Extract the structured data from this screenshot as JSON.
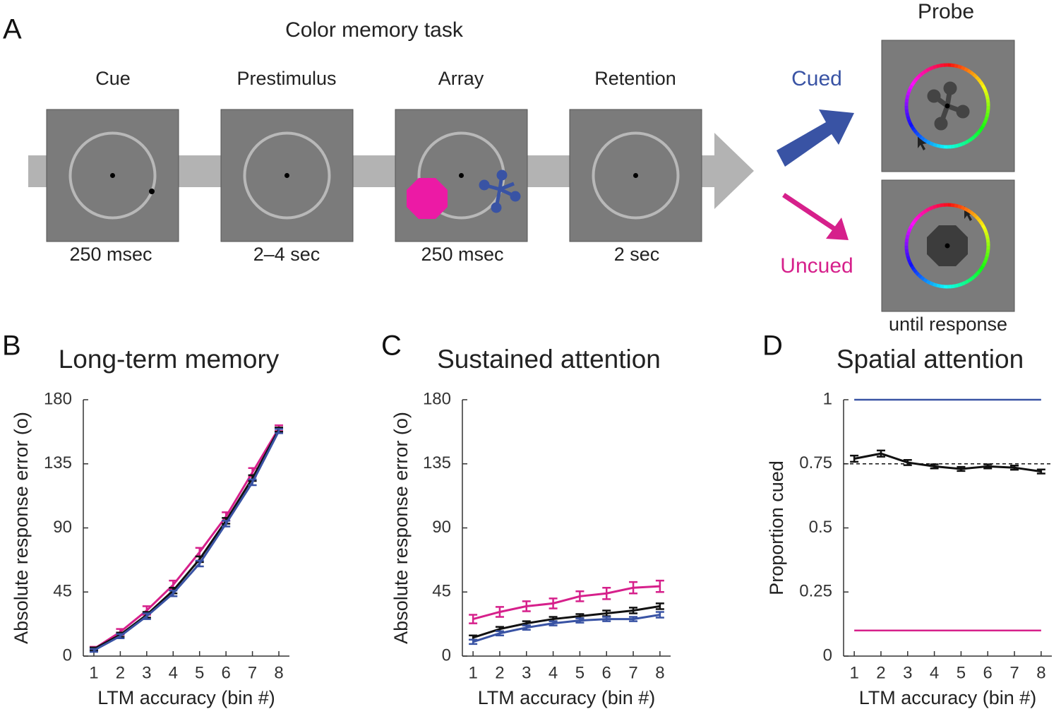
{
  "diagram": {
    "panel": "A",
    "title": "Color memory task",
    "stages": [
      {
        "label": "Cue",
        "duration": "250 msec"
      },
      {
        "label": "Prestimulus",
        "duration": "2–4 sec"
      },
      {
        "label": "Array",
        "duration": "250 msec"
      },
      {
        "label": "Retention",
        "duration": "2 sec"
      }
    ],
    "probe": {
      "label": "Probe",
      "duration": "until response"
    },
    "cued": "Cued",
    "uncued": "Uncued"
  },
  "chart_data": [
    {
      "type": "line",
      "panel": "B",
      "title": "Long-term memory",
      "xlabel": "LTM accuracy (bin #)",
      "ylabel": "Absolute response error (o)",
      "x": [
        1,
        2,
        3,
        4,
        5,
        6,
        7,
        8
      ],
      "xlim": [
        0.6,
        8.4
      ],
      "xticks": [
        1,
        2,
        3,
        4,
        5,
        6,
        7,
        8
      ],
      "ylim": [
        0,
        180
      ],
      "yticks": [
        0,
        45,
        90,
        135,
        180
      ],
      "series": [
        {
          "color": "#d6208b",
          "values": [
            5,
            17,
            32,
            50,
            73,
            98,
            129,
            160
          ],
          "errors": [
            1.5,
            2,
            3,
            3,
            3,
            3,
            3,
            2
          ]
        },
        {
          "color": "#111111",
          "values": [
            5,
            15,
            29,
            46,
            68,
            95,
            125,
            159
          ],
          "errors": [
            1,
            1.5,
            2,
            2,
            2,
            2,
            2,
            1.5
          ]
        },
        {
          "color": "#3953a4",
          "values": [
            4,
            14,
            28,
            44,
            65,
            93,
            122,
            158
          ],
          "errors": [
            1,
            1.5,
            2,
            2,
            2,
            2,
            2,
            1.5
          ]
        }
      ]
    },
    {
      "type": "line",
      "panel": "C",
      "title": "Sustained attention",
      "xlabel": "LTM accuracy (bin #)",
      "ylabel": "Absolute response error (o)",
      "x": [
        1,
        2,
        3,
        4,
        5,
        6,
        7,
        8
      ],
      "xlim": [
        0.6,
        8.4
      ],
      "xticks": [
        1,
        2,
        3,
        4,
        5,
        6,
        7,
        8
      ],
      "ylim": [
        0,
        180
      ],
      "yticks": [
        0,
        45,
        90,
        135,
        180
      ],
      "series": [
        {
          "color": "#d6208b",
          "values": [
            26,
            31,
            35,
            37,
            42,
            44,
            48,
            49
          ],
          "errors": [
            3,
            3.5,
            3.5,
            3.5,
            3.5,
            4,
            4,
            4
          ]
        },
        {
          "color": "#111111",
          "values": [
            13,
            19,
            23,
            26,
            28,
            30,
            32,
            35
          ],
          "errors": [
            1.5,
            1.5,
            1.5,
            1.5,
            1.5,
            2,
            2,
            2
          ]
        },
        {
          "color": "#3953a4",
          "values": [
            10,
            16,
            20,
            23,
            25,
            26,
            26,
            29
          ],
          "errors": [
            1.5,
            1.5,
            1.5,
            1.5,
            1.5,
            1.5,
            1.5,
            2
          ]
        }
      ]
    },
    {
      "type": "line",
      "panel": "D",
      "title": "Spatial attention",
      "xlabel": "LTM accuracy (bin #)",
      "ylabel": "Proportion cued",
      "x": [
        1,
        2,
        3,
        4,
        5,
        6,
        7,
        8
      ],
      "xlim": [
        0.6,
        8.4
      ],
      "xticks": [
        1,
        2,
        3,
        4,
        5,
        6,
        7,
        8
      ],
      "ylim": [
        0,
        1
      ],
      "yticks": [
        0,
        0.25,
        0.5,
        0.75,
        1
      ],
      "reference_lines": [
        {
          "value": 1,
          "color": "#3953a4",
          "dashed": false
        },
        {
          "value": 0.1,
          "color": "#d6208b",
          "dashed": false
        },
        {
          "value": 0.75,
          "color": "#111111",
          "dashed": true
        }
      ],
      "series": [
        {
          "color": "#111111",
          "values": [
            0.77,
            0.79,
            0.755,
            0.74,
            0.73,
            0.74,
            0.735,
            0.72
          ],
          "errors": [
            0.012,
            0.012,
            0.01,
            0.008,
            0.008,
            0.008,
            0.008,
            0.008
          ]
        }
      ]
    }
  ]
}
